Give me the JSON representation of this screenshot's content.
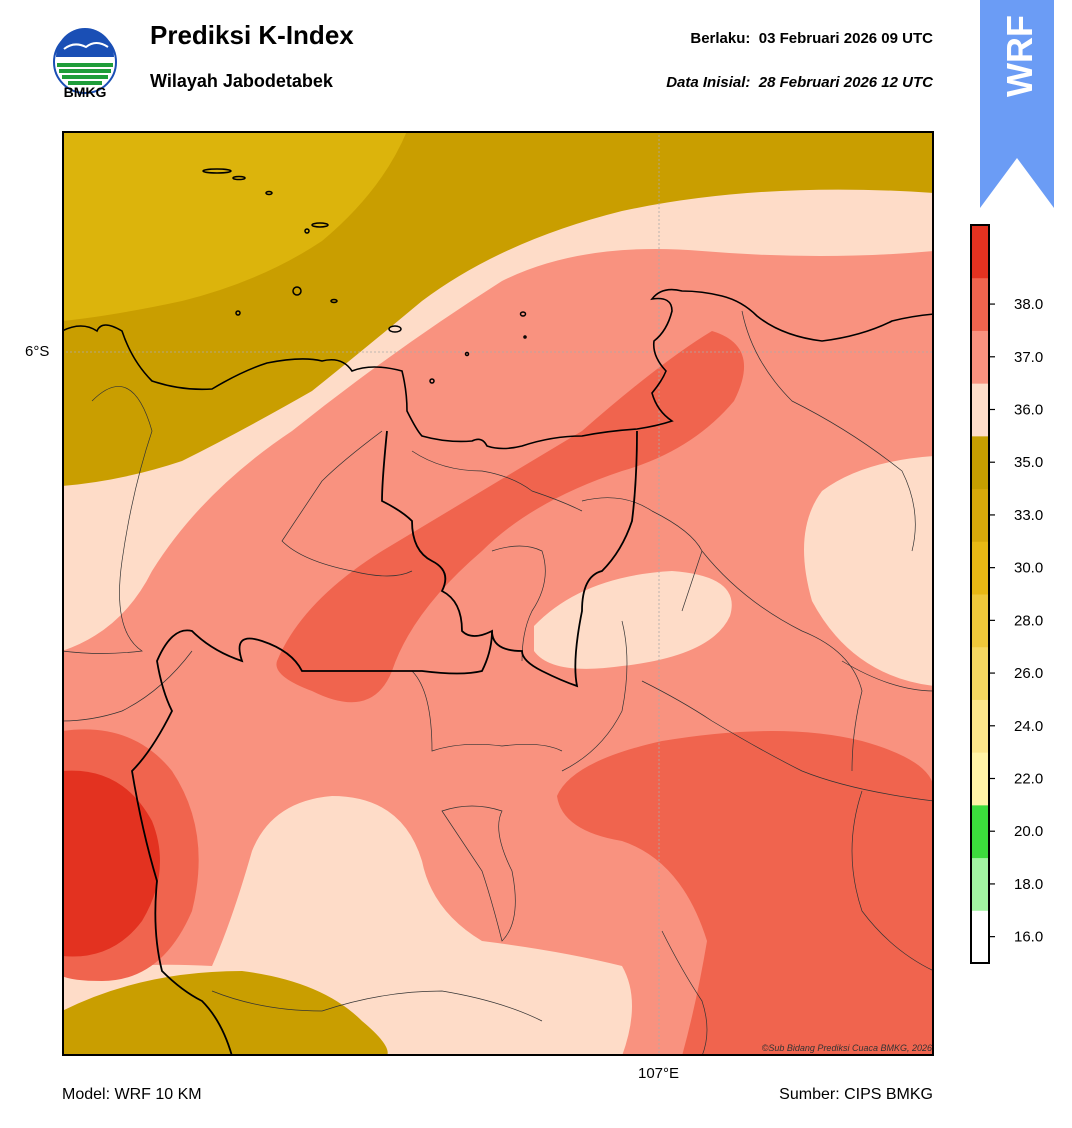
{
  "header": {
    "logo_text": "BMKG",
    "title": "Prediksi K-Index",
    "subtitle": "Wilayah Jabodetabek",
    "valid_label": "Berlaku:",
    "valid_value": "03 Februari 2026 09 UTC",
    "init_label": "Data Inisial:",
    "init_value": "28 Februari 2026 12 UTC",
    "badge_text": "WRF"
  },
  "map": {
    "lat_label": "6°S",
    "lon_label": "107°E",
    "credit": "©Sub Bidang Prediksi Cuaca BMKG, 2026"
  },
  "colorbar": {
    "ticks": [
      "16.0",
      "18.0",
      "20.0",
      "22.0",
      "24.0",
      "26.0",
      "28.0",
      "30.0",
      "33.0",
      "35.0",
      "36.0",
      "37.0",
      "38.0"
    ],
    "colors": [
      "#ffffff",
      "#a0f5a0",
      "#3cdc3c",
      "#fff4a6",
      "#fbe68a",
      "#f6d860",
      "#efc83a",
      "#e8b814",
      "#d8a80a",
      "#c79e00",
      "#fedcc8",
      "#f9927f",
      "#f0644e",
      "#e33220"
    ]
  },
  "footer": {
    "model": "Model: WRF 10 KM",
    "source": "Sumber: CIPS BMKG"
  }
}
